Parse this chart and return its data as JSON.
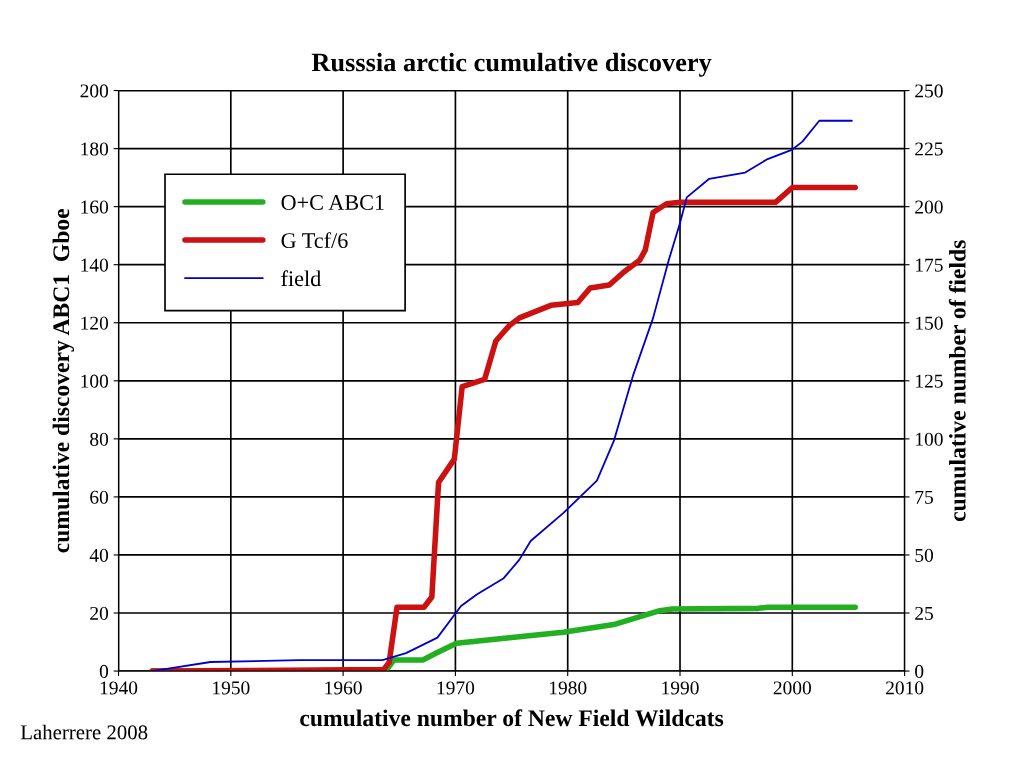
{
  "chart_data": {
    "type": "line",
    "title": "Russsia arctic cumulative discovery",
    "xlabel": "cumulative number of New Field Wildcats",
    "ylabel": "cumulative discovery ABC1  Gboe",
    "y2label": "cumulative number of fields",
    "annotations": [
      "Laherrere 2008"
    ],
    "series": [
      {
        "name": "O+C ABC1",
        "color": "#22b022",
        "x": [
          1943,
          1963.8,
          1964.5,
          1967.1,
          1968.3,
          1970.1,
          1974.8,
          1979.6,
          1984.1,
          1988.2,
          1989.3,
          1997,
          1997.8,
          2005.6
        ],
        "values": [
          0,
          0,
          3.8,
          3.8,
          6.2,
          9.6,
          11.5,
          13.4,
          16,
          20.8,
          21.4,
          21.6,
          22,
          22
        ]
      },
      {
        "name": "G Tcf/6",
        "color": "#cc1111",
        "x": [
          1943,
          1963.6,
          1964.1,
          1964.8,
          1967.2,
          1967.9,
          1968.5,
          1969.9,
          1970.6,
          1972.6,
          1973.6,
          1974.8,
          1975.7,
          1978.5,
          1980.9,
          1982,
          1983.7,
          1985,
          1986.4,
          1986.9,
          1987.6,
          1988.8,
          1990,
          1998.5,
          2000,
          2005.6
        ],
        "values": [
          0,
          0.5,
          3,
          22,
          22,
          25.5,
          65,
          73,
          98,
          100.5,
          113.7,
          119,
          121.7,
          126,
          127,
          132,
          133,
          137.5,
          141.5,
          145,
          158,
          161,
          161.5,
          161.5,
          166.6,
          166.6
        ]
      },
      {
        "name": "field",
        "color": "#0000cc",
        "axis": "y2",
        "x": [
          1943,
          1948.2,
          1956.1,
          1963.5,
          1965.6,
          1968.4,
          1970.5,
          1971.9,
          1974.3,
          1975.7,
          1976.7,
          1979.6,
          1982.6,
          1984.1,
          1985.8,
          1987.6,
          1989,
          1990,
          1990.6,
          1992.6,
          1995.8,
          1997.8,
          2000,
          2000.9,
          2002.4,
          2005.3
        ],
        "values": [
          0,
          3.9,
          4.7,
          4.7,
          7.7,
          14.4,
          28,
          33,
          40,
          48,
          56,
          68,
          82,
          99,
          127,
          152,
          177,
          193,
          204,
          212,
          214.7,
          220.5,
          224.6,
          228,
          237,
          237
        ]
      }
    ],
    "xlim": [
      1940,
      2010
    ],
    "xticks": [
      1940,
      1950,
      1960,
      1970,
      1980,
      1990,
      2000,
      2010
    ],
    "ylim": [
      0,
      200
    ],
    "yticks": [
      0,
      20,
      40,
      60,
      80,
      100,
      120,
      140,
      160,
      180,
      200
    ],
    "y2lim": [
      0,
      250
    ],
    "y2ticks": [
      0,
      25,
      50,
      75,
      100,
      125,
      150,
      175,
      200,
      225,
      250
    ],
    "grid": true,
    "legend": "top left",
    "marker": "none",
    "line_style": "solid"
  }
}
